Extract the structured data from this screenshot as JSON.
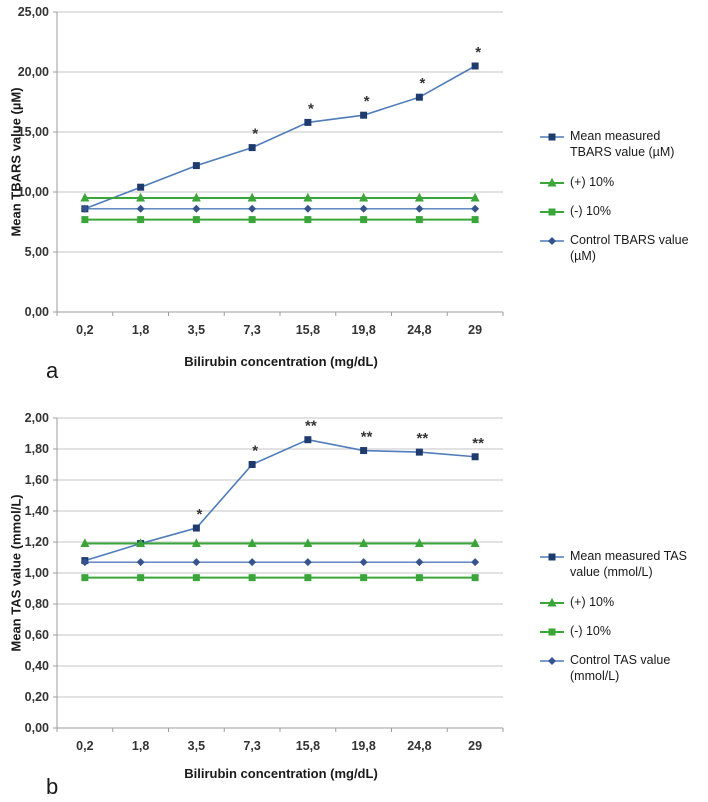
{
  "colors": {
    "blue_line": "#4f7cba",
    "blue_marker": "#1f3b6e",
    "green": "#3aa63a",
    "control_marker": "#35548f",
    "grid": "#c6c6c6",
    "axis": "#9c9c9c",
    "annotation": "#ff0000"
  },
  "chart_data": [
    {
      "id": "a",
      "type": "line",
      "panel_label": "a",
      "xlabel": "Bilirubin concentration (mg/dL)",
      "ylabel": "Mean TBARS value (µM)",
      "categories": [
        "0,2",
        "1,8",
        "3,5",
        "7,3",
        "15,8",
        "19,8",
        "24,8",
        "29"
      ],
      "ylim": [
        0,
        25
      ],
      "yticks": [
        {
          "value": 0,
          "label": "0,00"
        },
        {
          "value": 5,
          "label": "5,00"
        },
        {
          "value": 10,
          "label": "10,00"
        },
        {
          "value": 15,
          "label": "15,00"
        },
        {
          "value": 20,
          "label": "20,00"
        },
        {
          "value": 25,
          "label": "25,00"
        }
      ],
      "series": [
        {
          "name": "Mean measured TBARS value (µM)",
          "marker": "square",
          "color_role": "blue",
          "values": [
            8.6,
            10.4,
            12.2,
            13.7,
            15.8,
            16.4,
            17.9,
            20.5
          ]
        },
        {
          "name": "(+) 10%",
          "marker": "triangle",
          "color_role": "green",
          "values": [
            9.5,
            9.5,
            9.5,
            9.5,
            9.5,
            9.5,
            9.5,
            9.5
          ]
        },
        {
          "name": "(-) 10%",
          "marker": "gsquare",
          "color_role": "green",
          "values": [
            7.7,
            7.7,
            7.7,
            7.7,
            7.7,
            7.7,
            7.7,
            7.7
          ]
        },
        {
          "name": "Control TBARS value (µM)",
          "marker": "diamond",
          "color_role": "control",
          "values": [
            8.6,
            8.6,
            8.6,
            8.6,
            8.6,
            8.6,
            8.6,
            8.6
          ]
        }
      ],
      "annotations": [
        {
          "category_index": 3,
          "text": "*"
        },
        {
          "category_index": 4,
          "text": "*"
        },
        {
          "category_index": 5,
          "text": "*"
        },
        {
          "category_index": 6,
          "text": "*"
        },
        {
          "category_index": 7,
          "text": "*"
        }
      ],
      "legend": [
        "Mean measured TBARS value (µM)",
        "(+) 10%",
        "(-) 10%",
        "Control TBARS value (µM)"
      ]
    },
    {
      "id": "b",
      "type": "line",
      "panel_label": "b",
      "xlabel": "Bilirubin concentration (mg/dL)",
      "ylabel": "Mean TAS value (mmol/L)",
      "categories": [
        "0,2",
        "1,8",
        "3,5",
        "7,3",
        "15,8",
        "19,8",
        "24,8",
        "29"
      ],
      "ylim": [
        0,
        2
      ],
      "yticks": [
        {
          "value": 0.0,
          "label": "0,00"
        },
        {
          "value": 0.2,
          "label": "0,20"
        },
        {
          "value": 0.4,
          "label": "0,40"
        },
        {
          "value": 0.6,
          "label": "0,60"
        },
        {
          "value": 0.8,
          "label": "0,80"
        },
        {
          "value": 1.0,
          "label": "1,00"
        },
        {
          "value": 1.2,
          "label": "1,20"
        },
        {
          "value": 1.4,
          "label": "1,40"
        },
        {
          "value": 1.6,
          "label": "1,60"
        },
        {
          "value": 1.8,
          "label": "1,80"
        },
        {
          "value": 2.0,
          "label": "2,00"
        }
      ],
      "series": [
        {
          "name": "Mean measured TAS value (mmol/L)",
          "marker": "square",
          "color_role": "blue",
          "values": [
            1.08,
            1.19,
            1.29,
            1.7,
            1.86,
            1.79,
            1.78,
            1.75
          ]
        },
        {
          "name": "(+) 10%",
          "marker": "triangle",
          "color_role": "green",
          "values": [
            1.19,
            1.19,
            1.19,
            1.19,
            1.19,
            1.19,
            1.19,
            1.19
          ]
        },
        {
          "name": "(-) 10%",
          "marker": "gsquare",
          "color_role": "green",
          "values": [
            0.97,
            0.97,
            0.97,
            0.97,
            0.97,
            0.97,
            0.97,
            0.97
          ]
        },
        {
          "name": "Control TAS value (mmol/L)",
          "marker": "diamond",
          "color_role": "control",
          "values": [
            1.07,
            1.07,
            1.07,
            1.07,
            1.07,
            1.07,
            1.07,
            1.07
          ]
        }
      ],
      "annotations": [
        {
          "category_index": 2,
          "text": "*"
        },
        {
          "category_index": 3,
          "text": "*"
        },
        {
          "category_index": 4,
          "text": "**"
        },
        {
          "category_index": 5,
          "text": "**"
        },
        {
          "category_index": 6,
          "text": "**"
        },
        {
          "category_index": 7,
          "text": "**"
        }
      ],
      "legend": [
        "Mean measured TAS value (mmol/L)",
        "(+) 10%",
        "(-) 10%",
        "Control TAS value (mmol/L)"
      ]
    }
  ]
}
